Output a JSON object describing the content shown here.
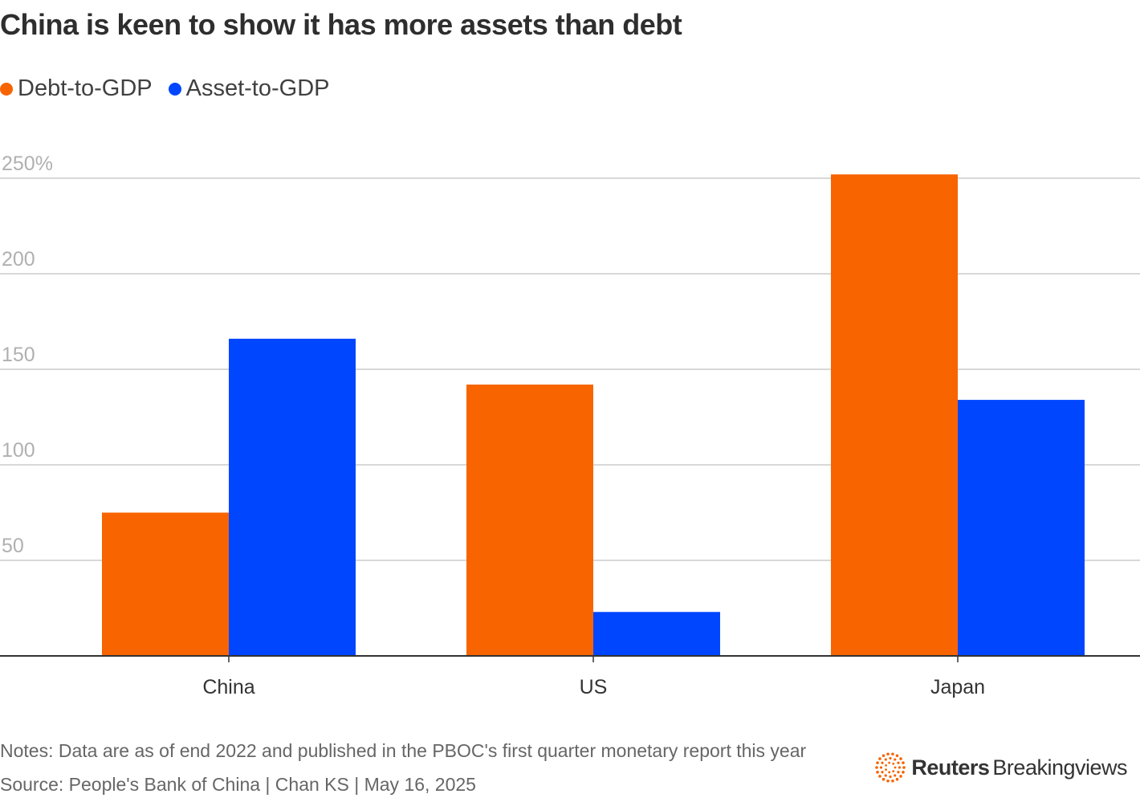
{
  "title": "China is keen to show it has more assets than debt",
  "legend": [
    {
      "label": "Debt-to-GDP",
      "color": "#f76400"
    },
    {
      "label": "Asset-to-GDP",
      "color": "#0046ff"
    }
  ],
  "chart_data": {
    "type": "bar",
    "categories": [
      "China",
      "US",
      "Japan"
    ],
    "series": [
      {
        "name": "Debt-to-GDP",
        "color": "#f76400",
        "values": [
          75,
          142,
          252
        ]
      },
      {
        "name": "Asset-to-GDP",
        "color": "#0046ff",
        "values": [
          166,
          23,
          134
        ]
      }
    ],
    "yticks": [
      "50",
      "100",
      "150",
      "200",
      "250%"
    ],
    "ytick_values": [
      50,
      100,
      150,
      200,
      250
    ],
    "ylim": [
      0,
      270
    ],
    "grid": true
  },
  "footer": {
    "notes": "Notes: Data are as of end 2022 and published in the PBOC's first quarter monetary report this year",
    "source": "Source: People's Bank of China | Chan KS | May 16, 2025"
  },
  "brand": {
    "name": "Reuters",
    "sub": "Breakingviews",
    "logo_icon": "reuters-logo-icon",
    "color": "#f76400"
  }
}
